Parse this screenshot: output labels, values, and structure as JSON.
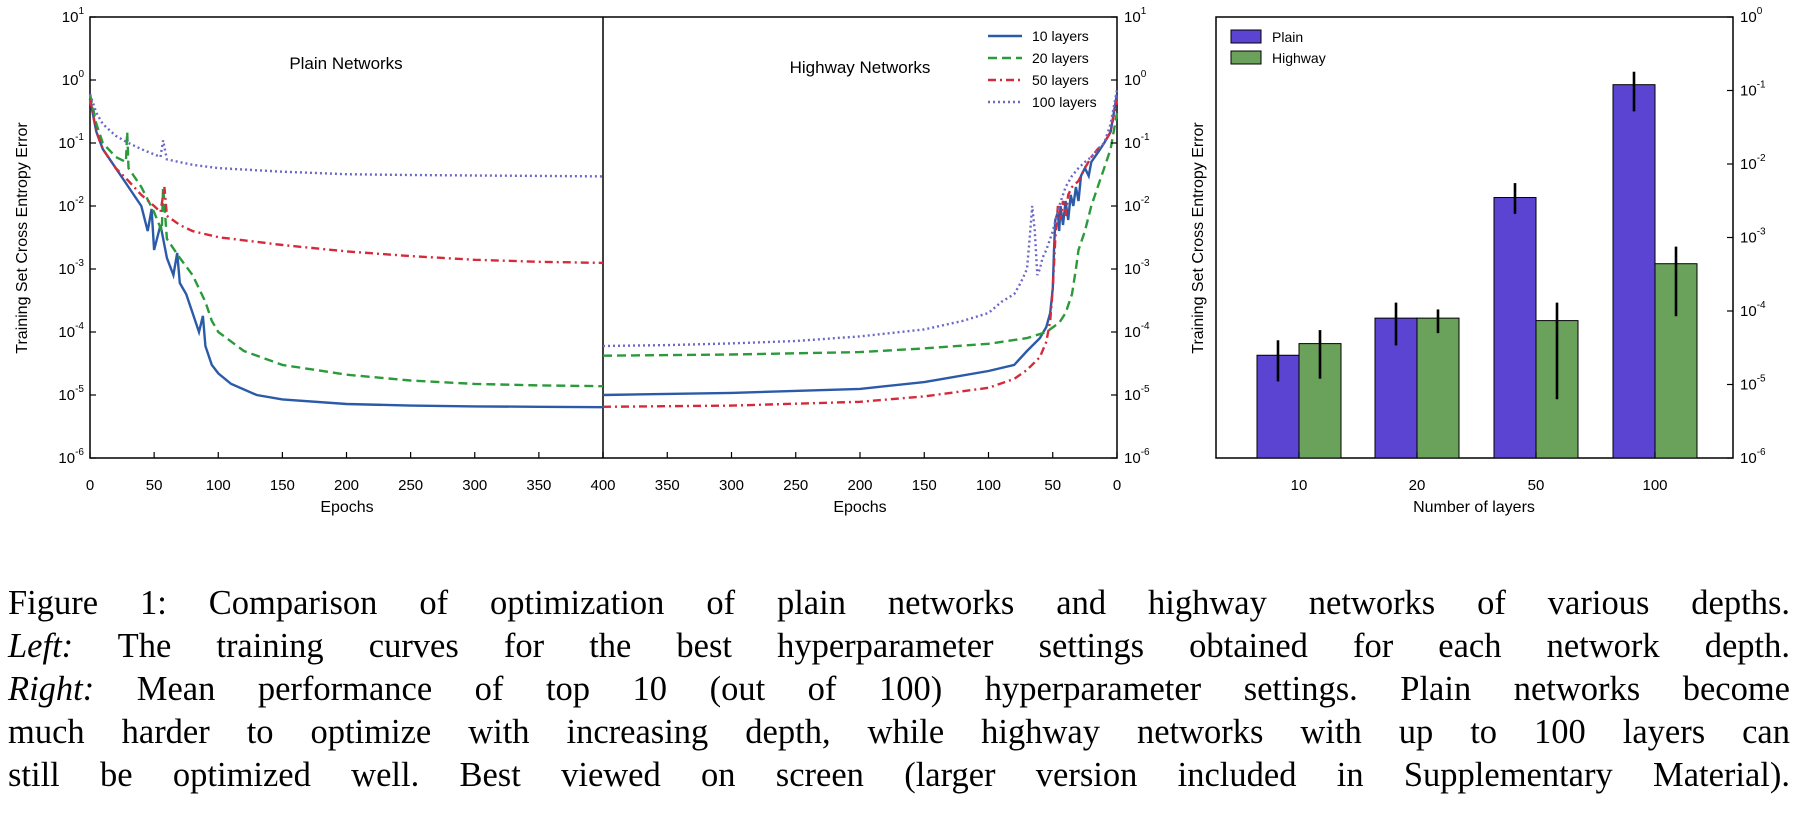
{
  "chart_data": [
    {
      "type": "line",
      "title": "Plain Networks",
      "xlabel": "Epochs",
      "ylabel": "Training Set Cross Entropy Error",
      "xlim": [
        0,
        400
      ],
      "x_ticks": [
        "0",
        "50",
        "100",
        "150",
        "200",
        "250",
        "300",
        "350",
        "400"
      ],
      "ylim": [
        1e-06,
        10
      ],
      "yscale": "log",
      "y_ticks": [
        {
          "base": "10",
          "exp": "1"
        },
        {
          "base": "10",
          "exp": "0"
        },
        {
          "base": "10",
          "exp": "-1"
        },
        {
          "base": "10",
          "exp": "-2"
        },
        {
          "base": "10",
          "exp": "-3"
        },
        {
          "base": "10",
          "exp": "-4"
        },
        {
          "base": "10",
          "exp": "-5"
        },
        {
          "base": "10",
          "exp": "-6"
        }
      ],
      "series": [
        {
          "name": "10 layers",
          "style": "solid",
          "color": "#2b5ba8",
          "points": [
            [
              0,
              0.5
            ],
            [
              5,
              0.15
            ],
            [
              10,
              0.08
            ],
            [
              20,
              0.04
            ],
            [
              30,
              0.02
            ],
            [
              40,
              0.01
            ],
            [
              45,
              0.004
            ],
            [
              48,
              0.009
            ],
            [
              50,
              0.002
            ],
            [
              55,
              0.005
            ],
            [
              60,
              0.0015
            ],
            [
              65,
              0.0008
            ],
            [
              68,
              0.0018
            ],
            [
              70,
              0.0006
            ],
            [
              75,
              0.0004
            ],
            [
              80,
              0.0002
            ],
            [
              85,
              0.0001
            ],
            [
              88,
              0.00018
            ],
            [
              90,
              6e-05
            ],
            [
              95,
              3e-05
            ],
            [
              100,
              2.2e-05
            ],
            [
              110,
              1.5e-05
            ],
            [
              130,
              1e-05
            ],
            [
              150,
              8.5e-06
            ],
            [
              200,
              7.2e-06
            ],
            [
              250,
              6.8e-06
            ],
            [
              300,
              6.6e-06
            ],
            [
              350,
              6.5e-06
            ],
            [
              400,
              6.4e-06
            ]
          ]
        },
        {
          "name": "20 layers",
          "style": "dashed",
          "color": "#2a9a3a",
          "points": [
            [
              0,
              0.6
            ],
            [
              5,
              0.2
            ],
            [
              10,
              0.1
            ],
            [
              20,
              0.06
            ],
            [
              28,
              0.05
            ],
            [
              29,
              0.15
            ],
            [
              30,
              0.04
            ],
            [
              40,
              0.02
            ],
            [
              50,
              0.008
            ],
            [
              56,
              0.004
            ],
            [
              57,
              0.02
            ],
            [
              60,
              0.003
            ],
            [
              70,
              0.0015
            ],
            [
              80,
              0.0008
            ],
            [
              90,
              0.0003
            ],
            [
              95,
              0.00015
            ],
            [
              100,
              0.0001
            ],
            [
              120,
              5e-05
            ],
            [
              150,
              3e-05
            ],
            [
              200,
              2.1e-05
            ],
            [
              250,
              1.7e-05
            ],
            [
              300,
              1.5e-05
            ],
            [
              350,
              1.42e-05
            ],
            [
              400,
              1.38e-05
            ]
          ]
        },
        {
          "name": "50 layers",
          "style": "dashdot",
          "color": "#d42a3a",
          "points": [
            [
              0,
              0.5
            ],
            [
              5,
              0.15
            ],
            [
              10,
              0.08
            ],
            [
              20,
              0.04
            ],
            [
              30,
              0.025
            ],
            [
              40,
              0.015
            ],
            [
              50,
              0.01
            ],
            [
              55,
              0.008
            ],
            [
              58,
              0.02
            ],
            [
              60,
              0.007
            ],
            [
              70,
              0.005
            ],
            [
              80,
              0.004
            ],
            [
              100,
              0.0032
            ],
            [
              150,
              0.0024
            ],
            [
              200,
              0.0019
            ],
            [
              250,
              0.0016
            ],
            [
              300,
              0.0014
            ],
            [
              350,
              0.0013
            ],
            [
              400,
              0.00125
            ]
          ]
        },
        {
          "name": "100 layers",
          "style": "dotted",
          "color": "#6b68c8",
          "points": [
            [
              0,
              0.6
            ],
            [
              5,
              0.3
            ],
            [
              10,
              0.2
            ],
            [
              20,
              0.13
            ],
            [
              30,
              0.1
            ],
            [
              40,
              0.08
            ],
            [
              55,
              0.06
            ],
            [
              57,
              0.11
            ],
            [
              60,
              0.055
            ],
            [
              80,
              0.045
            ],
            [
              100,
              0.04
            ],
            [
              150,
              0.035
            ],
            [
              200,
              0.032
            ],
            [
              250,
              0.031
            ],
            [
              300,
              0.0305
            ],
            [
              350,
              0.03
            ],
            [
              400,
              0.0295
            ]
          ]
        }
      ]
    },
    {
      "type": "line",
      "title": "Highway Networks",
      "xlabel": "Epochs",
      "xlim": [
        400,
        0
      ],
      "x_ticks": [
        "400",
        "350",
        "300",
        "250",
        "200",
        "150",
        "100",
        "50",
        "0"
      ],
      "ylim": [
        1e-06,
        10
      ],
      "yscale": "log",
      "y_ticks": [
        {
          "base": "10",
          "exp": "1"
        },
        {
          "base": "10",
          "exp": "0"
        },
        {
          "base": "10",
          "exp": "-1"
        },
        {
          "base": "10",
          "exp": "-2"
        },
        {
          "base": "10",
          "exp": "-3"
        },
        {
          "base": "10",
          "exp": "-4"
        },
        {
          "base": "10",
          "exp": "-5"
        },
        {
          "base": "10",
          "exp": "-6"
        }
      ],
      "legend_position": "top-right",
      "series": [
        {
          "name": "10 layers",
          "style": "solid",
          "color": "#2b5ba8",
          "points": [
            [
              400,
              1e-05
            ],
            [
              300,
              1.08e-05
            ],
            [
              200,
              1.25e-05
            ],
            [
              150,
              1.6e-05
            ],
            [
              100,
              2.4e-05
            ],
            [
              80,
              3e-05
            ],
            [
              70,
              5e-05
            ],
            [
              60,
              8e-05
            ],
            [
              55,
              0.00012
            ],
            [
              52,
              0.0002
            ],
            [
              50,
              0.0005
            ],
            [
              49,
              0.002
            ],
            [
              48,
              0.006
            ],
            [
              46,
              0.008
            ],
            [
              45,
              0.004
            ],
            [
              44,
              0.01
            ],
            [
              42,
              0.005
            ],
            [
              40,
              0.012
            ],
            [
              38,
              0.006
            ],
            [
              36,
              0.015
            ],
            [
              34,
              0.01
            ],
            [
              32,
              0.02
            ],
            [
              30,
              0.012
            ],
            [
              28,
              0.03
            ],
            [
              25,
              0.04
            ],
            [
              22,
              0.03
            ],
            [
              20,
              0.05
            ],
            [
              15,
              0.07
            ],
            [
              10,
              0.1
            ],
            [
              5,
              0.15
            ],
            [
              0,
              0.6
            ]
          ]
        },
        {
          "name": "20 layers",
          "style": "dashed",
          "color": "#2a9a3a",
          "points": [
            [
              400,
              4.2e-05
            ],
            [
              300,
              4.4e-05
            ],
            [
              200,
              4.8e-05
            ],
            [
              150,
              5.5e-05
            ],
            [
              100,
              6.5e-05
            ],
            [
              70,
              8e-05
            ],
            [
              55,
              0.0001
            ],
            [
              45,
              0.00014
            ],
            [
              40,
              0.0002
            ],
            [
              35,
              0.0004
            ],
            [
              32,
              0.001
            ],
            [
              30,
              0.002
            ],
            [
              25,
              0.004
            ],
            [
              20,
              0.01
            ],
            [
              15,
              0.02
            ],
            [
              10,
              0.04
            ],
            [
              5,
              0.08
            ],
            [
              0,
              0.3
            ]
          ]
        },
        {
          "name": "50 layers",
          "style": "dashdot",
          "color": "#d42a3a",
          "points": [
            [
              400,
              6.5e-06
            ],
            [
              300,
              6.8e-06
            ],
            [
              200,
              7.8e-06
            ],
            [
              150,
              9.5e-06
            ],
            [
              100,
              1.3e-05
            ],
            [
              80,
              1.8e-05
            ],
            [
              70,
              2.5e-05
            ],
            [
              60,
              4e-05
            ],
            [
              55,
              7e-05
            ],
            [
              52,
              0.00015
            ],
            [
              50,
              0.0005
            ],
            [
              48,
              0.003
            ],
            [
              46,
              0.01
            ],
            [
              44,
              0.006
            ],
            [
              42,
              0.012
            ],
            [
              40,
              0.007
            ],
            [
              38,
              0.015
            ],
            [
              35,
              0.02
            ],
            [
              30,
              0.025
            ],
            [
              25,
              0.04
            ],
            [
              20,
              0.06
            ],
            [
              15,
              0.08
            ],
            [
              10,
              0.1
            ],
            [
              5,
              0.15
            ],
            [
              0,
              0.5
            ]
          ]
        },
        {
          "name": "100 layers",
          "style": "dotted",
          "color": "#6b68c8",
          "points": [
            [
              400,
              6e-05
            ],
            [
              350,
              6.2e-05
            ],
            [
              300,
              6.6e-05
            ],
            [
              250,
              7.2e-05
            ],
            [
              200,
              8.5e-05
            ],
            [
              150,
              0.00011
            ],
            [
              120,
              0.00015
            ],
            [
              100,
              0.0002
            ],
            [
              90,
              0.0003
            ],
            [
              80,
              0.0004
            ],
            [
              75,
              0.0006
            ],
            [
              70,
              0.001
            ],
            [
              68,
              0.003
            ],
            [
              66,
              0.01
            ],
            [
              64,
              0.004
            ],
            [
              62,
              0.0008
            ],
            [
              60,
              0.001
            ],
            [
              58,
              0.0015
            ],
            [
              55,
              0.002
            ],
            [
              50,
              0.004
            ],
            [
              45,
              0.01
            ],
            [
              40,
              0.02
            ],
            [
              35,
              0.03
            ],
            [
              30,
              0.04
            ],
            [
              25,
              0.05
            ],
            [
              20,
              0.06
            ],
            [
              15,
              0.08
            ],
            [
              10,
              0.1
            ],
            [
              5,
              0.2
            ],
            [
              0,
              0.7
            ]
          ]
        }
      ]
    },
    {
      "type": "bar",
      "xlabel": "Number of layers",
      "ylabel": "Training Set Cross Entropy Error",
      "categories": [
        "10",
        "20",
        "50",
        "100"
      ],
      "ylim": [
        1e-06,
        1
      ],
      "yscale": "log",
      "y_ticks": [
        {
          "base": "10",
          "exp": "0"
        },
        {
          "base": "10",
          "exp": "-1"
        },
        {
          "base": "10",
          "exp": "-2"
        },
        {
          "base": "10",
          "exp": "-3"
        },
        {
          "base": "10",
          "exp": "-4"
        },
        {
          "base": "10",
          "exp": "-5"
        },
        {
          "base": "10",
          "exp": "-6"
        }
      ],
      "legend_position": "top-left",
      "series": [
        {
          "name": "Plain",
          "color": "#5b44d2",
          "values": [
            2.5e-05,
            8e-05,
            0.0035,
            0.12
          ],
          "error_low": [
            1.1e-05,
            3.4e-05,
            0.0021,
            0.052
          ],
          "error_high": [
            4e-05,
            0.00013,
            0.0055,
            0.18
          ]
        },
        {
          "name": "Highway",
          "color": "#6aa25b",
          "values": [
            3.6e-05,
            8e-05,
            7.4e-05,
            0.00044
          ],
          "error_low": [
            1.2e-05,
            5e-05,
            6.3e-06,
            8.5e-05
          ],
          "error_high": [
            5.5e-05,
            0.000105,
            0.00013,
            0.00075
          ]
        }
      ]
    }
  ],
  "caption": {
    "label": "Figure 1:",
    "line1": "Comparison of optimization of plain networks and highway networks of various depths.",
    "left_label": "Left:",
    "line2": "The training curves for the best hyperparameter settings obtained for each network depth.",
    "right_label": "Right:",
    "line3": "Mean performance of top 10 (out of 100) hyperparameter settings. Plain networks become",
    "line4": "much harder to optimize with increasing depth, while highway networks with up to 100 layers can",
    "line5": "still be optimized well. Best viewed on screen (larger version included in Supplementary Material)."
  }
}
